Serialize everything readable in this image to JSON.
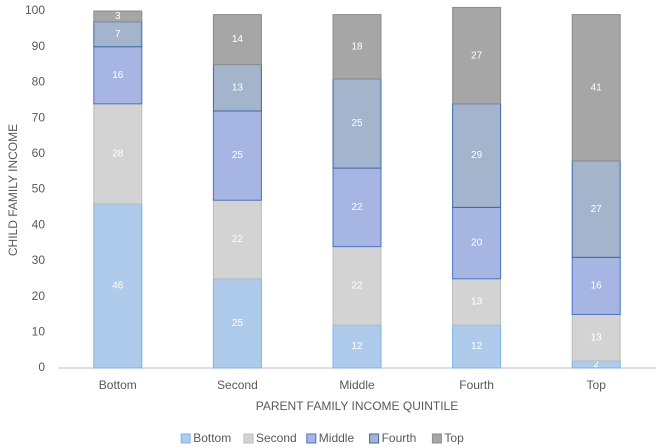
{
  "chart_data": {
    "type": "stacked_bar",
    "x_label": "PARENT FAMILY INCOME QUINTILE",
    "y_label": "CHILD FAMILY INCOME",
    "categories": [
      "Bottom",
      "Second",
      "Middle",
      "Fourth",
      "Top"
    ],
    "series": [
      {
        "name": "Bottom",
        "color": "#aecbeb",
        "edgecolor": "#7fb0e0",
        "values": [
          46,
          25,
          12,
          12,
          2
        ]
      },
      {
        "name": "Second",
        "color": "#d3d3d3",
        "edgecolor": "#bdbdbd",
        "values": [
          28,
          22,
          22,
          13,
          13
        ]
      },
      {
        "name": "Middle",
        "color": "#a7b5e3",
        "edgecolor": "#4a72c8",
        "values": [
          16,
          25,
          22,
          20,
          16
        ]
      },
      {
        "name": "Fourth",
        "color": "#a3b4cc",
        "edgecolor": "#3d6aa8",
        "values": [
          7,
          13,
          25,
          29,
          27
        ]
      },
      {
        "name": "Top",
        "color": "#a6a6a6",
        "edgecolor": "#8c8c8c",
        "values": [
          3,
          14,
          18,
          27,
          41
        ]
      }
    ],
    "ylim": [
      0,
      100
    ],
    "yticks": [
      0,
      10,
      20,
      30,
      40,
      50,
      60,
      70,
      80,
      90,
      100
    ],
    "legend": "bottom"
  }
}
